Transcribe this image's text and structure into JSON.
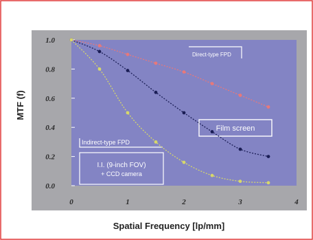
{
  "chart_data": {
    "type": "line",
    "title": "",
    "xlabel": "Spatial Frequency [lp/mm]",
    "ylabel": "MTF (f)",
    "xlim": [
      0,
      4
    ],
    "ylim": [
      0,
      1
    ],
    "x_ticks": [
      0,
      1,
      2,
      3,
      4
    ],
    "x_tick_labels": [
      "0",
      "1",
      "2",
      "3",
      "4"
    ],
    "y_ticks": [
      0,
      0.2,
      0.4,
      0.6,
      0.8,
      1.0
    ],
    "y_tick_labels": [
      "0.0",
      "0.2",
      "0.4",
      "0.6",
      "0.8",
      "1.0"
    ],
    "grid": false,
    "series": [
      {
        "name": "Direct-type FPD",
        "color": "#e8787a",
        "x": [
          0,
          0.5,
          1.0,
          1.5,
          2.0,
          2.5,
          3.0,
          3.5
        ],
        "y": [
          1.0,
          0.96,
          0.9,
          0.84,
          0.78,
          0.7,
          0.62,
          0.54
        ]
      },
      {
        "name": "Film screen",
        "color": "#1a1d55",
        "x": [
          0,
          0.5,
          1.0,
          1.5,
          2.0,
          2.5,
          3.0,
          3.5
        ],
        "y": [
          1.0,
          0.92,
          0.79,
          0.64,
          0.5,
          0.37,
          0.25,
          0.2
        ]
      },
      {
        "name": "Indirect-type FPD",
        "color": "#d7d86a",
        "x": [
          0,
          0.5,
          1.0,
          1.5,
          2.0,
          2.5,
          3.0,
          3.5
        ],
        "y": [
          1.0,
          0.8,
          0.5,
          0.3,
          0.16,
          0.07,
          0.03,
          0.02
        ]
      }
    ],
    "annotations": [
      {
        "id": "direct",
        "text": "Direct-type FPD"
      },
      {
        "id": "film",
        "text": "Film screen"
      },
      {
        "id": "indirect",
        "text": "Indirect-type FPD"
      },
      {
        "id": "ii1",
        "text": "I.I. (9-inch FOV)"
      },
      {
        "id": "ii2",
        "text": "+ CCD camera"
      }
    ]
  }
}
